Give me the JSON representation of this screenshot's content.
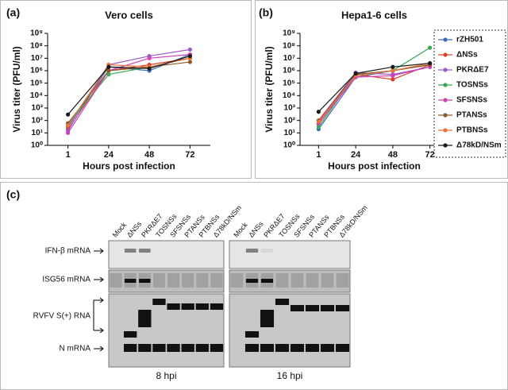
{
  "chart_data": [
    {
      "type": "line",
      "panel": "(a)",
      "title": "Vero cells",
      "y_label": "Virus titer (PFU/ml)",
      "x_label": "Hours post infection",
      "categories": [
        "1",
        "24",
        "48",
        "72"
      ],
      "log_scale": true,
      "grid": false,
      "ylim": [
        1,
        1000000000
      ],
      "yticks": [
        {
          "value": 1,
          "label": "10⁰"
        },
        {
          "value": 10,
          "label": "10¹"
        },
        {
          "value": 100,
          "label": "10²"
        },
        {
          "value": 1000,
          "label": "10³"
        },
        {
          "value": 10000,
          "label": "10⁴"
        },
        {
          "value": 100000,
          "label": "10⁵"
        },
        {
          "value": 1000000,
          "label": "10⁶"
        },
        {
          "value": 10000000,
          "label": "10⁷"
        },
        {
          "value": 100000000,
          "label": "10⁸"
        },
        {
          "value": 1000000000,
          "label": "10⁹"
        }
      ],
      "series": [
        {
          "name": "rZH501",
          "color": "#3a6fb5",
          "values": [
            30,
            2000000,
            1000000,
            20000000
          ]
        },
        {
          "name": "ΔNSs",
          "color": "#d9412b",
          "values": [
            20,
            1000000,
            3000000,
            10000000
          ]
        },
        {
          "name": "PKRΔE7",
          "color": "#9b59c6",
          "values": [
            15,
            3000000,
            15000000,
            50000000
          ]
        },
        {
          "name": "TOSNSs",
          "color": "#3aa856",
          "values": [
            50,
            500000,
            2000000,
            10000000
          ]
        },
        {
          "name": "SFSNSs",
          "color": "#d23fb6",
          "values": [
            10,
            1000000,
            10000000,
            20000000
          ]
        },
        {
          "name": "PTANSs",
          "color": "#8a5a2b",
          "values": [
            60,
            1000000,
            2000000,
            5000000
          ]
        },
        {
          "name": "PTBNSs",
          "color": "#e8743b",
          "values": [
            40,
            3000000,
            2000000,
            10000000
          ]
        },
        {
          "name": "Δ78kD/NSm",
          "color": "#1a1a1a",
          "values": [
            300,
            2000000,
            1500000,
            15000000
          ]
        }
      ]
    },
    {
      "type": "line",
      "panel": "(b)",
      "title": "Hepa1-6 cells",
      "y_label": "Virus titer (PFU/ml)",
      "x_label": "Hours post infection",
      "categories": [
        "1",
        "24",
        "48",
        "72"
      ],
      "log_scale": true,
      "grid": false,
      "legend": "right",
      "ylim": [
        1,
        1000000000
      ],
      "yticks": [
        {
          "value": 1,
          "label": "10⁰"
        },
        {
          "value": 10,
          "label": "10¹"
        },
        {
          "value": 100,
          "label": "10²"
        },
        {
          "value": 1000,
          "label": "10³"
        },
        {
          "value": 10000,
          "label": "10⁴"
        },
        {
          "value": 100000,
          "label": "10⁵"
        },
        {
          "value": 1000000,
          "label": "10⁶"
        },
        {
          "value": 10000000,
          "label": "10⁷"
        },
        {
          "value": 100000000,
          "label": "10⁸"
        },
        {
          "value": 1000000000,
          "label": "10⁹"
        }
      ],
      "series": [
        {
          "name": "rZH501",
          "color": "#3a6fb5",
          "values": [
            20,
            300000,
            1000000,
            3000000
          ]
        },
        {
          "name": "ΔNSs",
          "color": "#d9412b",
          "values": [
            50,
            500000,
            200000,
            3000000
          ]
        },
        {
          "name": "PKRΔE7",
          "color": "#9b59c6",
          "values": [
            100,
            700000,
            500000,
            2000000
          ]
        },
        {
          "name": "TOSNSs",
          "color": "#3aa856",
          "values": [
            30,
            500000,
            1000000,
            70000000
          ]
        },
        {
          "name": "SFSNSs",
          "color": "#d23fb6",
          "values": [
            60,
            300000,
            400000,
            2000000
          ]
        },
        {
          "name": "PTANSs",
          "color": "#8a5a2b",
          "values": [
            100,
            500000,
            1000000,
            3000000
          ]
        },
        {
          "name": "PTBNSs",
          "color": "#e8743b",
          "values": [
            80,
            400000,
            1000000,
            4000000
          ]
        },
        {
          "name": "Δ78kD/NSm",
          "color": "#1a1a1a",
          "values": [
            500,
            600000,
            2000000,
            4000000
          ]
        }
      ]
    }
  ],
  "blot": {
    "panel": "(c)",
    "lanes": [
      "Mock",
      "ΔNSs",
      "PKRΔE7",
      "TOSNSs",
      "SFSNSs",
      "PTANSs",
      "PTBNSs",
      "Δ78kD/NSm"
    ],
    "rows": [
      "IFN-β mRNA",
      "ISG56 mRNA",
      "RVFV S(+) RNA",
      "N mRNA"
    ],
    "times": [
      "8 hpi",
      "16 hpi"
    ]
  }
}
